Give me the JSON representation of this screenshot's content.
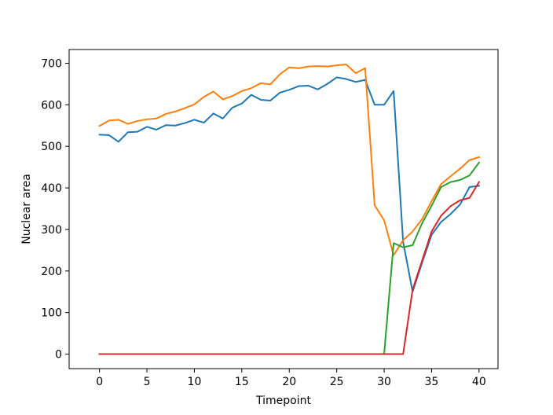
{
  "chart_data": {
    "type": "line",
    "title": "",
    "xlabel": "Timepoint",
    "ylabel": "Nuclear area",
    "xlim": [
      -3.2,
      42
    ],
    "ylim": [
      -35,
      733
    ],
    "xticks": [
      0,
      5,
      10,
      15,
      20,
      25,
      30,
      35,
      40
    ],
    "yticks": [
      0,
      100,
      200,
      300,
      400,
      500,
      600,
      700
    ],
    "grid": false,
    "legend": "none",
    "series": [
      {
        "color": "#1f77b4",
        "x": [
          0,
          1,
          2,
          3,
          4,
          5,
          6,
          7,
          8,
          9,
          10,
          11,
          12,
          13,
          14,
          15,
          16,
          17,
          18,
          19,
          20,
          21,
          22,
          23,
          24,
          25,
          26,
          27,
          28,
          29,
          30,
          31,
          32,
          33,
          34,
          35,
          36,
          37,
          38,
          39,
          40
        ],
        "y": [
          528,
          527,
          511,
          534,
          535,
          547,
          540,
          551,
          550,
          556,
          564,
          557,
          579,
          567,
          593,
          603,
          624,
          612,
          610,
          629,
          636,
          645,
          646,
          637,
          650,
          666,
          662,
          655,
          660,
          600,
          600,
          633,
          270,
          150,
          220,
          287,
          318,
          337,
          360,
          402,
          405
        ]
      },
      {
        "color": "#ff7f0e",
        "x": [
          0,
          1,
          2,
          3,
          4,
          5,
          6,
          7,
          8,
          9,
          10,
          11,
          12,
          13,
          14,
          15,
          16,
          17,
          18,
          19,
          20,
          21,
          22,
          23,
          24,
          25,
          26,
          27,
          28,
          29,
          30,
          31,
          32,
          33,
          34,
          35,
          36,
          37,
          38,
          39,
          40
        ],
        "y": [
          549,
          562,
          564,
          554,
          561,
          565,
          567,
          578,
          584,
          592,
          601,
          619,
          632,
          613,
          621,
          633,
          640,
          652,
          649,
          673,
          690,
          688,
          692,
          693,
          692,
          695,
          697,
          676,
          688,
          358,
          322,
          238,
          274,
          295,
          325,
          368,
          409,
          428,
          446,
          467,
          474
        ]
      },
      {
        "color": "#2ca02c",
        "x": [
          0,
          1,
          2,
          3,
          4,
          5,
          6,
          7,
          8,
          9,
          10,
          11,
          12,
          13,
          14,
          15,
          16,
          17,
          18,
          19,
          20,
          21,
          22,
          23,
          24,
          25,
          26,
          27,
          28,
          29,
          30,
          31,
          32,
          33,
          34,
          35,
          36,
          37,
          38,
          39,
          40
        ],
        "y": [
          0,
          0,
          0,
          0,
          0,
          0,
          0,
          0,
          0,
          0,
          0,
          0,
          0,
          0,
          0,
          0,
          0,
          0,
          0,
          0,
          0,
          0,
          0,
          0,
          0,
          0,
          0,
          0,
          0,
          0,
          0,
          267,
          257,
          262,
          315,
          357,
          402,
          414,
          419,
          430,
          461
        ]
      },
      {
        "color": "#d62728",
        "x": [
          0,
          1,
          2,
          3,
          4,
          5,
          6,
          7,
          8,
          9,
          10,
          11,
          12,
          13,
          14,
          15,
          16,
          17,
          18,
          19,
          20,
          21,
          22,
          23,
          24,
          25,
          26,
          27,
          28,
          29,
          30,
          31,
          32,
          33,
          34,
          35,
          36,
          37,
          38,
          39,
          40
        ],
        "y": [
          0,
          0,
          0,
          0,
          0,
          0,
          0,
          0,
          0,
          0,
          0,
          0,
          0,
          0,
          0,
          0,
          0,
          0,
          0,
          0,
          0,
          0,
          0,
          0,
          0,
          0,
          0,
          0,
          0,
          0,
          0,
          0,
          0,
          155,
          225,
          295,
          333,
          356,
          370,
          376,
          414
        ]
      }
    ]
  }
}
